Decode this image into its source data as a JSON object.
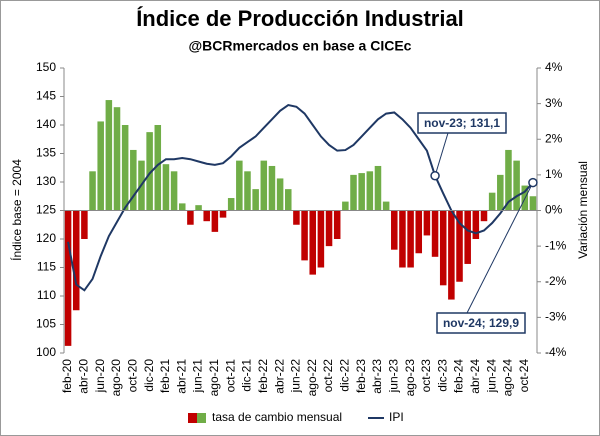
{
  "chart_data": {
    "type": "bar_line",
    "title": "Índice de Producción Industrial",
    "subtitle": "@BCRmercados en base a CICEc",
    "y_label": "Índice base = 2004",
    "y2_label": "Variación mensual",
    "categories": [
      "feb-20",
      null,
      "abr-20",
      null,
      "jun-20",
      null,
      "ago-20",
      null,
      "oct-20",
      null,
      "dic-20",
      null,
      "feb-21",
      null,
      "abr-21",
      null,
      "jun-21",
      null,
      "ago-21",
      null,
      "oct-21",
      null,
      "dic-21",
      null,
      "feb-22",
      null,
      "abr-22",
      null,
      "jun-22",
      null,
      "ago-22",
      null,
      "oct-22",
      null,
      "dic-22",
      null,
      "feb-23",
      null,
      "abr-23",
      null,
      "jun-23",
      null,
      "ago-23",
      null,
      "oct-23",
      null,
      "dic-23",
      null,
      "feb-24",
      null,
      "abr-24",
      null,
      "jun-24",
      null,
      "ago-24",
      null,
      "oct-24",
      null
    ],
    "series": [
      {
        "name": "tasa de cambio mensual",
        "type": "bar",
        "axis": "y2",
        "color": "#70ad47",
        "negative_color": "#c00000",
        "values": [
          -3.8,
          -2.8,
          -0.8,
          1.1,
          2.5,
          3.1,
          2.9,
          2.4,
          1.7,
          1.4,
          2.2,
          2.4,
          1.3,
          1.1,
          0.2,
          -0.4,
          0.15,
          -0.3,
          -0.6,
          -0.2,
          0.35,
          1.4,
          1.1,
          0.6,
          1.4,
          1.25,
          0.9,
          0.6,
          -0.4,
          -1.4,
          -1.8,
          -1.6,
          -1.0,
          -0.8,
          0.25,
          1.0,
          1.05,
          1.1,
          1.25,
          0.25,
          -1.1,
          -1.6,
          -1.6,
          -1.2,
          -0.7,
          -1.3,
          -2.1,
          -2.5,
          -2.0,
          -1.5,
          -0.8,
          -0.3,
          0.5,
          1.0,
          1.7,
          1.4,
          0.7,
          0.4
        ]
      },
      {
        "name": "IPI",
        "type": "line",
        "color": "#1f3864",
        "values": [
          119.5,
          112,
          111,
          113,
          117,
          120.5,
          123,
          125.5,
          127.5,
          129.5,
          131.5,
          133,
          134,
          134,
          134.2,
          134,
          133.6,
          133.2,
          133,
          133.3,
          134.5,
          136,
          137,
          138,
          139.5,
          141,
          142.5,
          143.5,
          143.2,
          142,
          140,
          138,
          136.5,
          135.5,
          135.6,
          136.5,
          138,
          139.5,
          141,
          142,
          142.2,
          141,
          139.5,
          137.5,
          135.5,
          131.1,
          128,
          125,
          122.8,
          121.5,
          121,
          121.5,
          122.8,
          124.5,
          126.5,
          127.5,
          128.3,
          129.9
        ]
      }
    ],
    "annotations": [
      {
        "text": "nov-23; 131,1",
        "series": 1,
        "index": 45
      },
      {
        "text": "nov-24; 129,9",
        "series": 1,
        "index": 57
      }
    ],
    "ylim": [
      100,
      150
    ],
    "yticks": [
      100,
      105,
      110,
      115,
      120,
      125,
      130,
      135,
      140,
      145,
      150
    ],
    "y2lim": [
      -4,
      4
    ],
    "y2ticks": [
      {
        "value": -4,
        "label": "-4%"
      },
      {
        "value": -3,
        "label": "-3%"
      },
      {
        "value": -2,
        "label": "-2%"
      },
      {
        "value": -1,
        "label": "-1%"
      },
      {
        "value": 0,
        "label": "0%"
      },
      {
        "value": 1,
        "label": "1%"
      },
      {
        "value": 2,
        "label": "2%"
      },
      {
        "value": 3,
        "label": "3%"
      },
      {
        "value": 4,
        "label": "4%"
      }
    ],
    "legend": "bottom"
  }
}
